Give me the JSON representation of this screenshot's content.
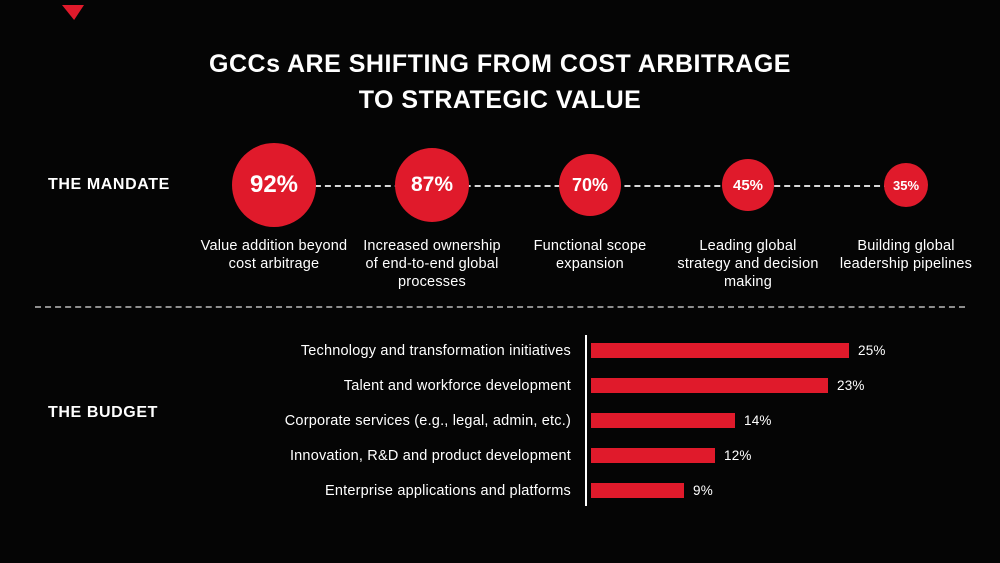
{
  "colors": {
    "accent_red": "#e01a2b",
    "background": "#050505",
    "text": "#ffffff"
  },
  "title": {
    "line1": "GCCs ARE SHIFTING FROM COST ARBITRAGE",
    "line2": "TO STRATEGIC VALUE"
  },
  "mandate": {
    "section_label": "THE MANDATE",
    "items": [
      {
        "value": 92,
        "display": "92%",
        "label": "Value addition beyond cost arbitrage"
      },
      {
        "value": 87,
        "display": "87%",
        "label": "Increased ownership of end-to-end global processes"
      },
      {
        "value": 70,
        "display": "70%",
        "label": "Functional scope expansion"
      },
      {
        "value": 45,
        "display": "45%",
        "label": "Leading global strategy and decision making"
      },
      {
        "value": 35,
        "display": "35%",
        "label": "Building global leadership pipelines"
      }
    ]
  },
  "budget": {
    "section_label": "THE BUDGET",
    "items": [
      {
        "label": "Technology and transformation initiatives",
        "value": 25,
        "display": "25%"
      },
      {
        "label": "Talent and workforce development",
        "value": 23,
        "display": "23%"
      },
      {
        "label": "Corporate services (e.g., legal, admin, etc.)",
        "value": 14,
        "display": "14%"
      },
      {
        "label": "Innovation, R&D and product development",
        "value": 12,
        "display": "12%"
      },
      {
        "label": "Enterprise applications and platforms",
        "value": 9,
        "display": "9%"
      }
    ]
  },
  "chart_data": [
    {
      "type": "bar",
      "title": "THE MANDATE",
      "categories": [
        "Value addition beyond cost arbitrage",
        "Increased ownership of end-to-end global processes",
        "Functional scope expansion",
        "Leading global strategy and decision making",
        "Building global leadership pipelines"
      ],
      "values": [
        92,
        87,
        70,
        45,
        35
      ],
      "unit": "%",
      "layout": "proportional circles connected by a horizontal dashed line, sized by value"
    },
    {
      "type": "bar",
      "title": "THE BUDGET",
      "categories": [
        "Technology and transformation initiatives",
        "Talent and workforce development",
        "Corporate services (e.g., legal, admin, etc.)",
        "Innovation, R&D and product development",
        "Enterprise applications and platforms"
      ],
      "values": [
        25,
        23,
        14,
        12,
        9
      ],
      "unit": "%",
      "layout": "horizontal bars, value labels at bar ends, white vertical baseline axis",
      "xlim": [
        0,
        25
      ]
    }
  ]
}
